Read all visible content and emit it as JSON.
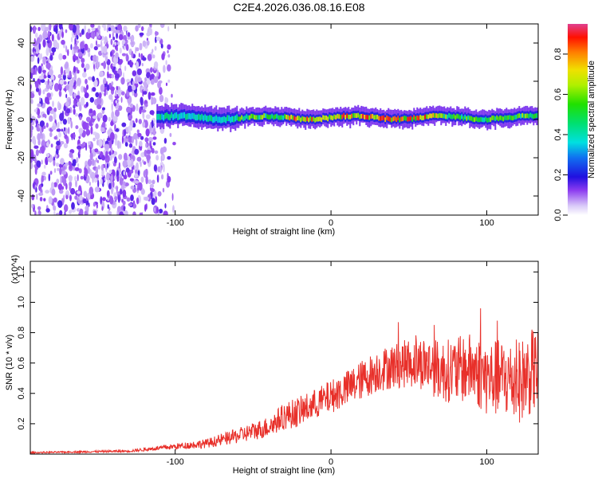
{
  "title": "C2E4.2026.036.08.16.E08",
  "chart_data": [
    {
      "type": "heatmap",
      "name": "spectrogram",
      "title": "C2E4.2026.036.08.16.E08",
      "xlabel": "Height of straight line (km)",
      "ylabel": "Frequency (Hz)",
      "xlim": [
        -193,
        133
      ],
      "ylim": [
        -50,
        50
      ],
      "xticks": [
        -100,
        0,
        100
      ],
      "xtick_labels": [
        "-100",
        "0",
        "100"
      ],
      "yticks": [
        -40,
        -20,
        0,
        20,
        40
      ],
      "ytick_labels": [
        "-40",
        "-20",
        "0",
        "20",
        "40"
      ],
      "colorbar": {
        "label": "Normalized spectral amplitude",
        "range": [
          0.0,
          0.95
        ],
        "ticks": [
          0.0,
          0.2,
          0.4,
          0.6,
          0.8
        ],
        "tick_labels": [
          "0.0",
          "0.2",
          "0.4",
          "0.6",
          "0.8"
        ]
      },
      "features": [
        {
          "description": "broadband noise",
          "x_range": [
            -193,
            -95
          ],
          "freq_range": [
            -50,
            50
          ],
          "amplitude": 0.1
        },
        {
          "description": "signal band centered near 0 Hz",
          "x_range": [
            -112,
            133
          ],
          "freq_center": 1,
          "freq_halfwidth": 4,
          "peak_amplitude": 0.9,
          "peak_x_range": [
            -30,
            70
          ]
        }
      ]
    },
    {
      "type": "line",
      "name": "snr",
      "xlabel": "Height of straight line (km)",
      "ylabel": "SNR (10 * v/v)",
      "y_multiplier": "(x10^4)",
      "xlim": [
        -193,
        133
      ],
      "ylim": [
        0,
        1.27
      ],
      "xticks": [
        -100,
        0,
        100
      ],
      "xtick_labels": [
        "-100",
        "0",
        "100"
      ],
      "yticks": [
        0.2,
        0.4,
        0.6,
        0.8,
        1.0,
        1.2
      ],
      "ytick_labels": [
        "0.2",
        "0.4",
        "0.6",
        "0.8",
        "1.0",
        "1.2"
      ],
      "series": [
        {
          "name": "SNR",
          "color": "#e8302a",
          "x": [
            -190,
            -160,
            -130,
            -110,
            -100,
            -80,
            -60,
            -40,
            -30,
            -20,
            -10,
            0,
            10,
            20,
            30,
            40,
            50,
            60,
            70,
            80,
            90,
            100,
            110,
            120,
            130
          ],
          "y": [
            0.01,
            0.015,
            0.02,
            0.04,
            0.05,
            0.07,
            0.12,
            0.18,
            0.25,
            0.28,
            0.33,
            0.38,
            0.43,
            0.49,
            0.55,
            0.58,
            0.6,
            0.6,
            0.55,
            0.55,
            0.57,
            0.5,
            0.5,
            0.47,
            0.55
          ],
          "noise_halfwidth": [
            0.005,
            0.006,
            0.008,
            0.015,
            0.02,
            0.03,
            0.05,
            0.07,
            0.09,
            0.1,
            0.1,
            0.11,
            0.12,
            0.13,
            0.14,
            0.15,
            0.16,
            0.18,
            0.2,
            0.22,
            0.23,
            0.25,
            0.26,
            0.27,
            0.28
          ]
        }
      ]
    }
  ]
}
